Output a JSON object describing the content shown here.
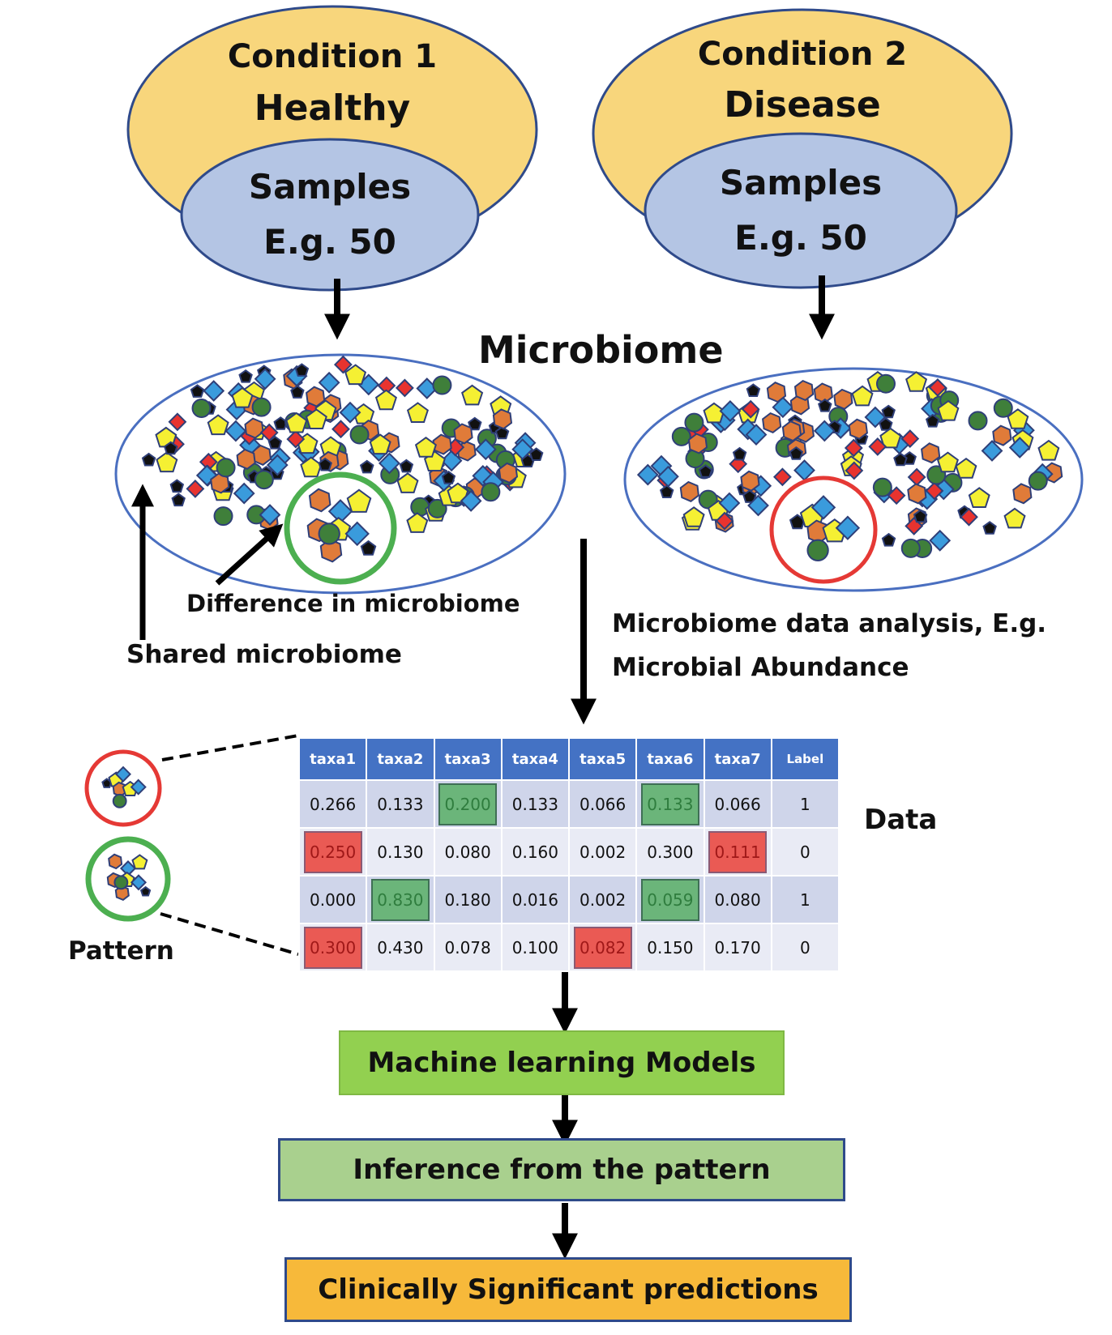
{
  "condition1": {
    "title": "Condition 1",
    "state": "Healthy",
    "samples": "Samples",
    "count": "E.g. 50"
  },
  "condition2": {
    "title": "Condition 2",
    "state": "Disease",
    "samples": "Samples",
    "count": "E.g. 50"
  },
  "microbiome_title": "Microbiome",
  "difference_label": "Difference in microbiome",
  "shared_label": "Shared microbiome",
  "analysis_label": [
    "Microbiome data analysis, E.g.",
    "Microbial Abundance"
  ],
  "pattern_label": "Pattern",
  "data_label": "Data",
  "table": {
    "headers": [
      "taxa1",
      "taxa2",
      "taxa3",
      "taxa4",
      "taxa5",
      "taxa6",
      "taxa7",
      "Label"
    ],
    "rows": [
      [
        "0.266",
        "0.133",
        "0.200",
        "0.133",
        "0.066",
        "0.133",
        "0.066",
        "1"
      ],
      [
        "0.250",
        "0.130",
        "0.080",
        "0.160",
        "0.002",
        "0.300",
        "0.111",
        "0"
      ],
      [
        "0.000",
        "0.830",
        "0.180",
        "0.016",
        "0.002",
        "0.059",
        "0.080",
        "1"
      ],
      [
        "0.300",
        "0.430",
        "0.078",
        "0.100",
        "0.082",
        "0.150",
        "0.170",
        "0"
      ]
    ],
    "highlights": [
      {
        "row": 0,
        "col": 2,
        "color": "green"
      },
      {
        "row": 0,
        "col": 5,
        "color": "green"
      },
      {
        "row": 1,
        "col": 0,
        "color": "red"
      },
      {
        "row": 1,
        "col": 6,
        "color": "red"
      },
      {
        "row": 2,
        "col": 1,
        "color": "green"
      },
      {
        "row": 2,
        "col": 5,
        "color": "green"
      },
      {
        "row": 3,
        "col": 0,
        "color": "red"
      },
      {
        "row": 3,
        "col": 4,
        "color": "red"
      }
    ]
  },
  "steps": [
    "Machine learning Models",
    "Inference from the pattern",
    "Clinically Significant predictions"
  ],
  "colors": {
    "condition_fill": "#f8d67c",
    "sample_fill": "#b4c5e4",
    "outline": "#2f4a8a",
    "green_circle": "#4caf50",
    "red_circle": "#e53935",
    "step1_fill": "#92d050",
    "step2_fill": "#a9d08e",
    "step3_fill": "#f7b93a",
    "header_fill": "#4472c4"
  }
}
